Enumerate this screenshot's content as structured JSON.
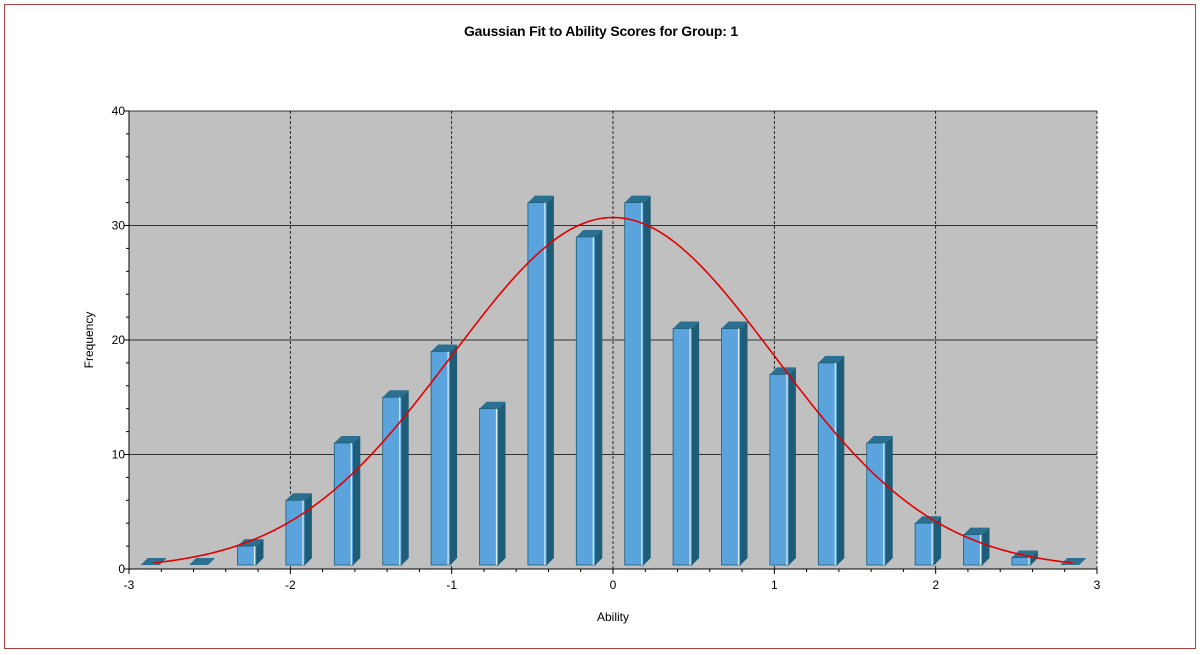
{
  "chart_data": {
    "type": "bar",
    "title": "Gaussian Fit to Ability Scores for Group: 1",
    "xlabel": "Ability",
    "ylabel": "Frequency",
    "xlim": [
      -3,
      3
    ],
    "ylim": [
      0,
      40
    ],
    "x_ticks": [
      -3,
      -2,
      -1,
      0,
      1,
      2,
      3
    ],
    "y_ticks": [
      0,
      10,
      20,
      30,
      40
    ],
    "grid": true,
    "bars": {
      "x": [
        -2.85,
        -2.55,
        -2.25,
        -1.95,
        -1.65,
        -1.35,
        -1.05,
        -0.75,
        -0.45,
        -0.15,
        0.15,
        0.45,
        0.75,
        1.05,
        1.35,
        1.65,
        1.95,
        2.25,
        2.55,
        2.85
      ],
      "values": [
        0,
        0,
        2,
        6,
        11,
        15,
        19,
        14,
        32,
        29,
        32,
        21,
        21,
        17,
        18,
        11,
        4,
        3,
        1,
        0
      ],
      "color": "#5ba3dc",
      "side_color": "#1e5d78"
    },
    "fit": {
      "type": "line",
      "mean": 0,
      "sd": 1.0,
      "peak": 30.7,
      "x_range": [
        -2.85,
        2.85
      ],
      "color": "#e00000"
    },
    "colors": {
      "plot_background": "#c0c0c0",
      "grid": "#000000",
      "border": "#b04040"
    }
  }
}
